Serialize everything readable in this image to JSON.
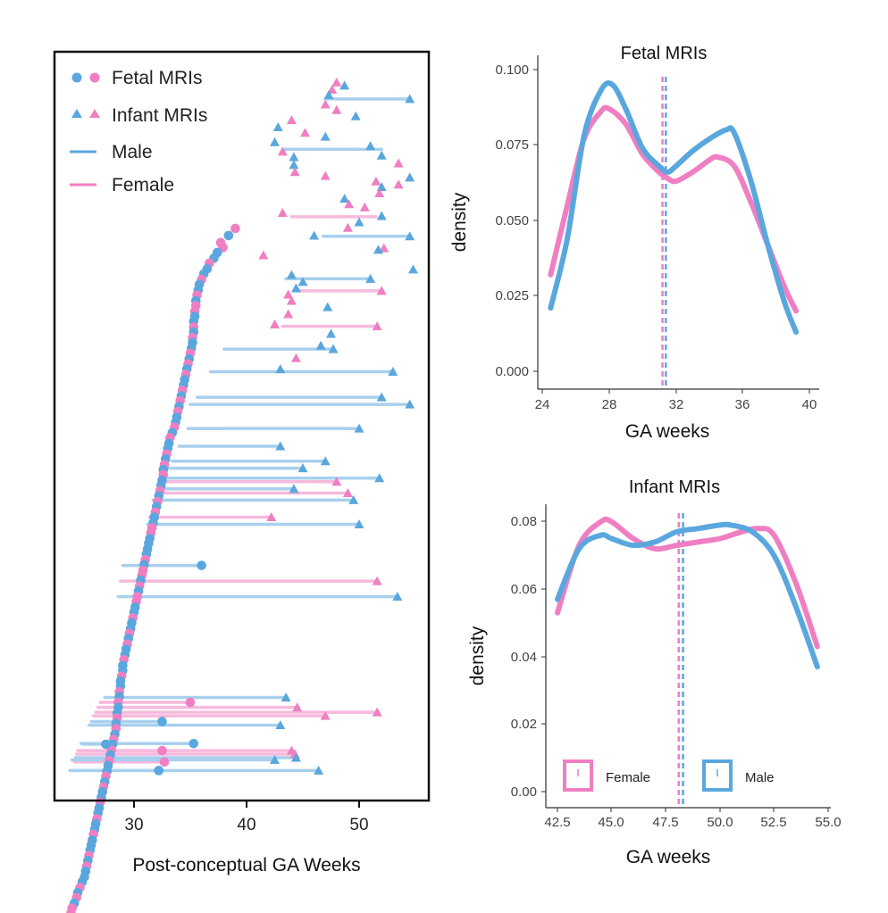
{
  "colors": {
    "male": "#5aa7de",
    "female": "#ef7fc2",
    "male_light": "#a8d0ee",
    "female_light": "#f7b9dd",
    "axis": "#333333"
  },
  "panel_a": {
    "xlabel": "Post-conceptual GA Weeks",
    "ticks": [
      "30",
      "40",
      "50"
    ],
    "legend": {
      "fetal": "Fetal MRIs",
      "infant": "Infant MRIs",
      "male": "Male",
      "female": "Female"
    }
  },
  "panel_b": {
    "title": "Fetal MRIs",
    "xlabel": "GA weeks",
    "ylabel": "density",
    "xticks": [
      "24",
      "28",
      "32",
      "36",
      "40"
    ],
    "yticks": [
      "0.000",
      "0.025",
      "0.050",
      "0.075",
      "0.100"
    ]
  },
  "panel_c": {
    "title": "Infant MRIs",
    "xlabel": "GA weeks",
    "ylabel": "density",
    "xticks": [
      "42.5",
      "45.0",
      "47.5",
      "50.0",
      "52.5",
      "55.0"
    ],
    "yticks": [
      "0.00",
      "0.02",
      "0.04",
      "0.06",
      "0.08"
    ],
    "legend": {
      "female": "Female",
      "male": "Male"
    }
  },
  "chart_data": [
    {
      "type": "scatter",
      "xlabel": "Post-conceptual GA Weeks",
      "xlim": [
        23.5,
        56.5
      ],
      "x_ticks": [
        30,
        40,
        50
      ],
      "series": [
        {
          "name": "Fetal MRIs",
          "sex_code": [
            "F",
            "M",
            "F",
            "F",
            "M",
            "M",
            "F",
            "M",
            "M",
            "F",
            "M",
            "M",
            "F",
            "M",
            "F",
            "F",
            "M",
            "M",
            "F",
            "M",
            "F",
            "M",
            "M",
            "F",
            "M",
            "F",
            "M",
            "F",
            "M",
            "M",
            "F",
            "M",
            "F",
            "M",
            "F",
            "M",
            "M",
            "F",
            "M",
            "F",
            "M",
            "M",
            "F",
            "M",
            "F",
            "M",
            "F",
            "M",
            "M",
            "F",
            "M",
            "F",
            "M",
            "F",
            "M",
            "M",
            "F",
            "F",
            "M",
            "M",
            "M",
            "M",
            "F",
            "M",
            "F",
            "F",
            "M",
            "F",
            "M",
            "F",
            "F",
            "M",
            "M",
            "F",
            "M",
            "M",
            "F",
            "M",
            "F",
            "M",
            "M",
            "F",
            "M",
            "M",
            "F",
            "M",
            "M",
            "F",
            "M",
            "F",
            "M",
            "M",
            "F",
            "M",
            "F",
            "M",
            "F",
            "M",
            "F",
            "M",
            "F",
            "M",
            "M",
            "F",
            "M",
            "F",
            "M",
            "M",
            "F",
            "M",
            "M",
            "F",
            "M",
            "M",
            "F",
            "M",
            "M",
            "M",
            "F",
            "M",
            "F",
            "M",
            "M",
            "M",
            "F",
            "M",
            "F",
            "M"
          ],
          "x": [
            39.0,
            38.4,
            37.7,
            37.9,
            37.4,
            37.1,
            36.7,
            36.5,
            36.2,
            36.0,
            35.8,
            35.7,
            35.6,
            35.5,
            35.5,
            35.4,
            35.4,
            35.3,
            35.3,
            35.3,
            35.2,
            35.2,
            35.1,
            35.0,
            34.9,
            34.8,
            34.7,
            34.6,
            34.5,
            34.4,
            34.3,
            34.2,
            34.1,
            34.0,
            33.9,
            33.8,
            33.7,
            33.6,
            33.4,
            33.2,
            33.1,
            33.0,
            32.9,
            32.8,
            32.7,
            32.6,
            32.6,
            32.5,
            32.4,
            32.3,
            32.2,
            32.1,
            32.0,
            31.9,
            31.8,
            31.7,
            31.6,
            31.5,
            31.4,
            31.3,
            31.2,
            31.1,
            31.0,
            30.9,
            30.8,
            30.7,
            30.6,
            30.5,
            30.4,
            30.3,
            30.2,
            30.1,
            30.0,
            29.9,
            29.8,
            29.7,
            29.6,
            29.5,
            29.4,
            29.3,
            29.2,
            29.1,
            29.0,
            29.0,
            28.9,
            28.8,
            28.8,
            28.7,
            28.7,
            28.6,
            28.6,
            28.5,
            28.5,
            28.4,
            28.4,
            28.3,
            28.2,
            28.1,
            28.0,
            27.9,
            27.8,
            27.7,
            27.6,
            27.5,
            27.4,
            27.3,
            27.2,
            27.1,
            27.0,
            26.9,
            26.8,
            26.7,
            26.6,
            26.5,
            26.4,
            26.3,
            26.2,
            26.1,
            26.0,
            25.9,
            25.8,
            25.7,
            25.6,
            25.4,
            25.2,
            25.0,
            24.9,
            24.7,
            24.5,
            24.4
          ],
          "row": [
            1.0,
            2.0,
            3.0,
            3.7,
            4.4,
            5.2,
            5.9,
            6.7,
            7.4,
            8.2,
            8.9,
            9.7,
            10.4,
            11.2,
            11.9,
            12.7,
            13.4,
            14.1,
            14.9,
            15.6,
            16.4,
            17.1,
            17.9,
            18.6,
            19.4,
            20.1,
            20.8,
            21.6,
            22.3,
            23.1,
            23.8,
            24.6,
            25.3,
            26.1,
            26.8,
            27.6,
            28.3,
            29.0,
            29.8,
            30.5,
            31.3,
            32.0,
            32.8,
            33.5,
            34.3,
            35.0,
            35.7,
            36.5,
            37.2,
            38.0,
            38.7,
            39.5,
            40.2,
            41.0,
            41.7,
            42.5,
            43.2,
            43.9,
            44.7,
            45.4,
            46.2,
            46.9,
            47.7,
            48.4,
            49.2,
            49.9,
            50.6,
            51.4,
            52.1,
            52.9,
            53.6,
            54.4,
            55.1,
            55.9,
            56.6,
            57.4,
            58.1,
            58.8,
            59.6,
            60.3,
            61.1,
            61.8,
            62.6,
            63.3,
            64.1,
            64.8,
            65.5,
            66.3,
            67.0,
            67.8,
            68.5,
            69.3,
            70.0,
            70.8,
            71.5,
            72.3,
            73.0,
            73.7,
            74.5,
            75.2,
            76.0,
            76.7,
            77.5,
            78.2,
            79.0,
            79.7,
            80.4,
            81.2,
            81.9,
            82.7,
            83.4,
            84.2,
            84.9,
            85.7,
            86.4,
            87.2,
            87.9,
            88.6,
            89.4,
            90.1,
            90.9,
            91.6,
            92.4,
            93.1,
            93.9,
            94.6,
            95.3,
            96.1,
            96.8,
            97.5
          ]
        },
        {
          "name": "Infant MRIs",
          "sex_code": [
            "F",
            "M",
            "F",
            "M",
            "M",
            "F",
            "F",
            "M",
            "F",
            "M",
            "F",
            "M",
            "M",
            "M",
            "F",
            "M",
            "M",
            "F",
            "M",
            "F",
            "F",
            "M",
            "F",
            "M",
            "F",
            "F",
            "M",
            "F",
            "F",
            "F",
            "M",
            "M",
            "F",
            "M",
            "F",
            "M",
            "F",
            "M",
            "M",
            "M",
            "M",
            "F",
            "F",
            "M",
            "F",
            "F",
            "M",
            "M",
            "F",
            "M"
          ],
          "x": [
            48.0,
            48.7,
            47.6,
            47.3,
            54.5,
            47.0,
            48.0,
            49.7,
            44.0,
            42.8,
            45.2,
            47.0,
            42.5,
            51.0,
            43.2,
            52.0,
            44.2,
            53.5,
            44.2,
            44.3,
            47.0,
            54.5,
            51.5,
            52.0,
            53.5,
            51.8,
            48.7,
            49.1,
            50.5,
            43.2,
            52.0,
            50.0,
            49.0,
            46.0,
            52.2,
            51.7,
            41.5,
            54.8,
            44.0,
            45.0,
            44.4,
            43.7,
            44.0,
            47.2,
            43.7,
            42.5,
            47.5,
            46.6,
            44.4,
            43.0
          ],
          "row": [
            0.5,
            0.9,
            1.4,
            2.1,
            2.6,
            3.3,
            4.0,
            4.8,
            5.3,
            6.2,
            6.9,
            7.4,
            8.1,
            8.6,
            9.3,
            9.8,
            10.0,
            10.8,
            11.0,
            11.9,
            12.4,
            12.6,
            13.1,
            13.8,
            13.5,
            14.6,
            15.3,
            16.0,
            16.4,
            17.1,
            17.5,
            18.3,
            19.0,
            20.0,
            21.6,
            21.8,
            22.5,
            24.3,
            25.0,
            25.9,
            26.7,
            27.5,
            28.3,
            29.1,
            30.0,
            31.3,
            32.5,
            34.0,
            35.6,
            37.0
          ]
        }
      ],
      "links": [
        {
          "sex": "M",
          "x0": 46.8,
          "x1": 54.5,
          "row": 2.1
        },
        {
          "sex": "M",
          "x0": 43.5,
          "x1": 51.0,
          "row": 8.1
        },
        {
          "sex": "F",
          "x0": 44.5,
          "x1": 52.0,
          "row": 9.8
        },
        {
          "sex": "F",
          "x0": 43.2,
          "x1": 51.6,
          "row": 14.8
        },
        {
          "sex": "M",
          "x0": 38.0,
          "x1": 47.7,
          "row": 18.0
        },
        {
          "sex": "M",
          "x0": 36.8,
          "x1": 53.0,
          "row": 21.2
        },
        {
          "sex": "M",
          "x0": 35.6,
          "x1": 52.0,
          "row": 24.8
        },
        {
          "sex": "M",
          "x0": 35.0,
          "x1": 54.5,
          "row": 25.8
        },
        {
          "sex": "M",
          "x0": 34.8,
          "x1": 50.0,
          "row": 29.2
        },
        {
          "sex": "M",
          "x0": 34.0,
          "x1": 43.0,
          "row": 31.7
        },
        {
          "sex": "M",
          "x0": 33.4,
          "x1": 47.0,
          "row": 33.8
        },
        {
          "sex": "M",
          "x0": 33.0,
          "x1": 45.0,
          "row": 34.8
        },
        {
          "sex": "M",
          "x0": 32.6,
          "x1": 51.8,
          "row": 36.2
        },
        {
          "sex": "F",
          "x0": 32.5,
          "x1": 48.0,
          "row": 36.7
        },
        {
          "sex": "M",
          "x0": 32.4,
          "x1": 44.2,
          "row": 37.7
        },
        {
          "sex": "F",
          "x0": 32.3,
          "x1": 49.0,
          "row": 38.3
        },
        {
          "sex": "M",
          "x0": 31.7,
          "x1": 49.5,
          "row": 39.3
        },
        {
          "sex": "F",
          "x0": 31.4,
          "x1": 42.2,
          "row": 41.7
        },
        {
          "sex": "M",
          "x0": 31.2,
          "x1": 50.0,
          "row": 42.7
        },
        {
          "sex": "M",
          "x0": 29.0,
          "x1": 36.0,
          "row": 48.5
        },
        {
          "sex": "F",
          "x0": 28.8,
          "x1": 51.6,
          "row": 50.7
        },
        {
          "sex": "M",
          "x0": 28.6,
          "x1": 53.4,
          "row": 52.9
        },
        {
          "sex": "M",
          "x0": 27.4,
          "x1": 43.5,
          "row": 67.1
        },
        {
          "sex": "F",
          "x0": 27.0,
          "x1": 35.0,
          "row": 67.8
        },
        {
          "sex": "F",
          "x0": 26.8,
          "x1": 44.5,
          "row": 68.5
        },
        {
          "sex": "F",
          "x0": 26.6,
          "x1": 51.6,
          "row": 69.2
        },
        {
          "sex": "F",
          "x0": 26.4,
          "x1": 47.0,
          "row": 69.7
        },
        {
          "sex": "M",
          "x0": 26.2,
          "x1": 32.5,
          "row": 70.5
        },
        {
          "sex": "M",
          "x0": 26.0,
          "x1": 43.0,
          "row": 71.0
        },
        {
          "sex": "M",
          "x0": 25.5,
          "x1": 27.5,
          "row": 73.7
        },
        {
          "sex": "M",
          "x0": 25.3,
          "x1": 35.3,
          "row": 73.6
        },
        {
          "sex": "F",
          "x0": 25.2,
          "x1": 44.0,
          "row": 74.6
        },
        {
          "sex": "F",
          "x0": 25.0,
          "x1": 32.5,
          "row": 74.6
        },
        {
          "sex": "F",
          "x0": 24.9,
          "x1": 44.3,
          "row": 75.1
        },
        {
          "sex": "M",
          "x0": 24.8,
          "x1": 44.4,
          "row": 75.6
        },
        {
          "sex": "F",
          "x0": 24.7,
          "x1": 32.7,
          "row": 76.2
        },
        {
          "sex": "M",
          "x0": 24.5,
          "x1": 42.5,
          "row": 75.9
        },
        {
          "sex": "M",
          "x0": 24.4,
          "x1": 46.4,
          "row": 77.4
        },
        {
          "sex": "M",
          "x0": 24.3,
          "x1": 32.2,
          "row": 77.4
        }
      ]
    },
    {
      "type": "line",
      "title": "Fetal MRIs",
      "xlabel": "GA weeks",
      "ylabel": "density",
      "xlim": [
        24,
        40
      ],
      "ylim": [
        0,
        0.1
      ],
      "series": [
        {
          "name": "Male",
          "x": [
            24.5,
            25.5,
            26.5,
            27.5,
            28.2,
            29.0,
            30.0,
            31.0,
            31.5,
            32.0,
            33.0,
            34.0,
            35.0,
            35.5,
            36.5,
            37.5,
            38.5,
            39.2
          ],
          "values": [
            0.021,
            0.044,
            0.078,
            0.093,
            0.095,
            0.087,
            0.074,
            0.068,
            0.066,
            0.068,
            0.073,
            0.077,
            0.08,
            0.079,
            0.063,
            0.042,
            0.023,
            0.013
          ]
        },
        {
          "name": "Female",
          "x": [
            24.5,
            25.5,
            26.5,
            27.5,
            28.0,
            29.0,
            30.0,
            31.0,
            31.5,
            32.0,
            33.0,
            34.0,
            34.5,
            35.5,
            36.5,
            37.5,
            38.5,
            39.2
          ],
          "values": [
            0.032,
            0.055,
            0.077,
            0.086,
            0.087,
            0.082,
            0.072,
            0.066,
            0.064,
            0.063,
            0.066,
            0.07,
            0.071,
            0.068,
            0.056,
            0.042,
            0.028,
            0.02
          ]
        }
      ],
      "vlines": [
        {
          "series": "Male",
          "x": 31.4
        },
        {
          "series": "Female",
          "x": 31.2
        }
      ]
    },
    {
      "type": "line",
      "title": "Infant MRIs",
      "xlabel": "GA weeks",
      "ylabel": "density",
      "xlim": [
        42.3,
        55.0
      ],
      "ylim": [
        0,
        0.082
      ],
      "series": [
        {
          "name": "Female",
          "x": [
            42.5,
            43.5,
            44.5,
            45.0,
            46.0,
            47.0,
            48.0,
            49.0,
            50.0,
            51.0,
            51.8,
            52.5,
            53.5,
            54.5
          ],
          "values": [
            0.053,
            0.073,
            0.08,
            0.08,
            0.075,
            0.072,
            0.073,
            0.074,
            0.075,
            0.077,
            0.078,
            0.076,
            0.062,
            0.043
          ]
        },
        {
          "name": "Male",
          "x": [
            42.5,
            43.5,
            44.5,
            45.0,
            46.0,
            47.0,
            48.0,
            49.0,
            50.0,
            50.5,
            51.5,
            52.5,
            53.5,
            54.5
          ],
          "values": [
            0.057,
            0.072,
            0.076,
            0.075,
            0.073,
            0.074,
            0.077,
            0.078,
            0.079,
            0.079,
            0.077,
            0.07,
            0.055,
            0.037
          ]
        }
      ],
      "vlines": [
        {
          "series": "Male",
          "x": 48.3
        },
        {
          "series": "Female",
          "x": 48.1
        }
      ],
      "legend_position": "bottom-left"
    }
  ]
}
